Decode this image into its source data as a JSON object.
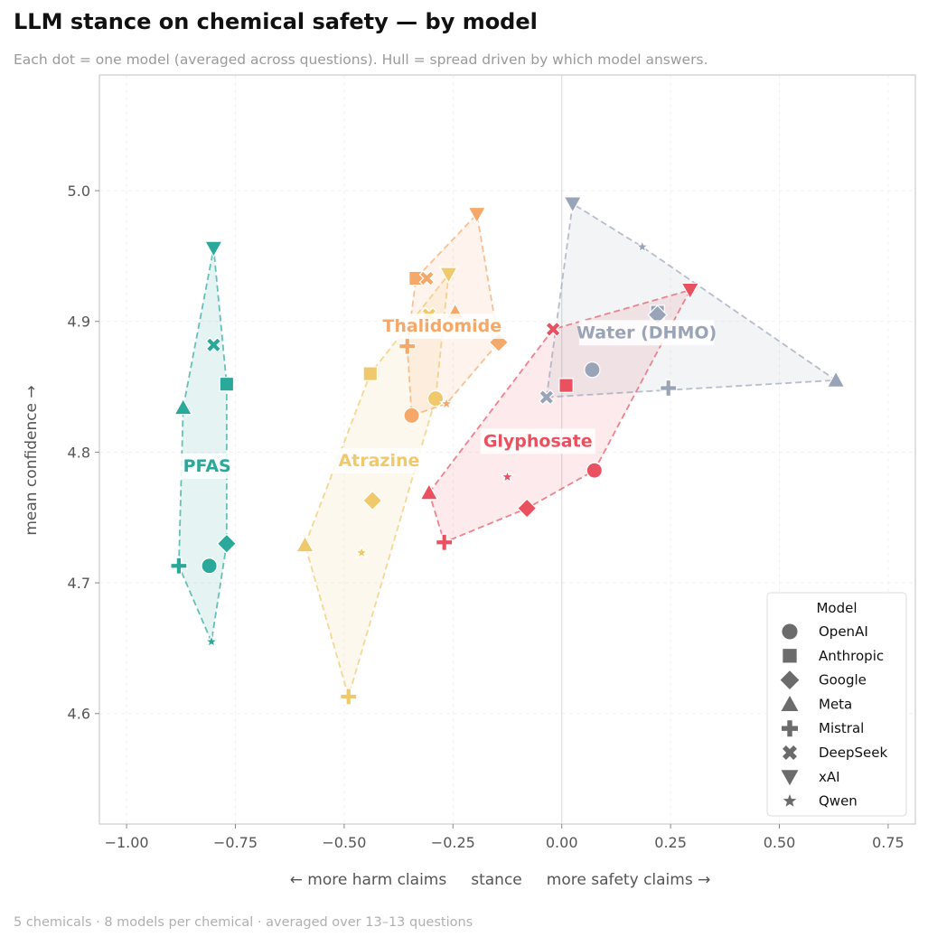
{
  "title": "LLM stance on chemical safety — by model",
  "subtitle": "Each dot = one model (averaged across questions). Hull = spread driven by which model answers.",
  "footer": "5 chemicals · 8 models per chemical · averaged over 13–13 questions",
  "chart_data": {
    "type": "scatter",
    "title": "LLM stance on chemical safety — by model",
    "xlabel": "← more harm claims     stance     more safety claims →",
    "ylabel": "mean confidence →",
    "xlim": [
      -1.0625,
      0.8125
    ],
    "ylim": [
      4.5155,
      5.0885
    ],
    "x_ticks": [
      -1.0,
      -0.75,
      -0.5,
      -0.25,
      0.0,
      0.25,
      0.5,
      0.75
    ],
    "x_tick_labels": [
      "−1.00",
      "−0.75",
      "−0.50",
      "−0.25",
      "0.00",
      "0.25",
      "0.50",
      "0.75"
    ],
    "y_ticks": [
      4.6,
      4.7,
      4.8,
      4.9,
      5.0
    ],
    "y_tick_labels": [
      "4.6",
      "4.7",
      "4.8",
      "4.9",
      "5.0"
    ],
    "grid": true,
    "reference_line_x": 0.0,
    "legend": {
      "title": "Model",
      "placement": "bottom-right",
      "entries": [
        {
          "model": "OpenAI",
          "marker": "circle"
        },
        {
          "model": "Anthropic",
          "marker": "square"
        },
        {
          "model": "Google",
          "marker": "diamond"
        },
        {
          "model": "Meta",
          "marker": "triangle-up"
        },
        {
          "model": "Mistral",
          "marker": "plus"
        },
        {
          "model": "DeepSeek",
          "marker": "x"
        },
        {
          "model": "xAI",
          "marker": "triangle-down"
        },
        {
          "model": "Qwen",
          "marker": "star"
        }
      ]
    },
    "series": [
      {
        "name": "PFAS",
        "color": "#2aa89a",
        "label_at": [
          -0.815,
          4.79
        ],
        "points": [
          {
            "model": "OpenAI",
            "x": -0.81,
            "y": 4.713
          },
          {
            "model": "Anthropic",
            "x": -0.77,
            "y": 4.852
          },
          {
            "model": "Google",
            "x": -0.77,
            "y": 4.73
          },
          {
            "model": "Meta",
            "x": -0.87,
            "y": 4.834
          },
          {
            "model": "Mistral",
            "x": -0.88,
            "y": 4.713
          },
          {
            "model": "DeepSeek",
            "x": -0.8,
            "y": 4.882
          },
          {
            "model": "xAI",
            "x": -0.8,
            "y": 4.956
          },
          {
            "model": "Qwen",
            "x": -0.805,
            "y": 4.655
          }
        ]
      },
      {
        "name": "Atrazine",
        "color": "#efc96b",
        "label_at": [
          -0.42,
          4.794
        ],
        "points": [
          {
            "model": "OpenAI",
            "x": -0.29,
            "y": 4.841
          },
          {
            "model": "Anthropic",
            "x": -0.44,
            "y": 4.86
          },
          {
            "model": "Google",
            "x": -0.435,
            "y": 4.763
          },
          {
            "model": "Meta",
            "x": -0.59,
            "y": 4.729
          },
          {
            "model": "Mistral",
            "x": -0.49,
            "y": 4.613
          },
          {
            "model": "DeepSeek",
            "x": -0.305,
            "y": 4.905
          },
          {
            "model": "xAI",
            "x": -0.26,
            "y": 4.936
          },
          {
            "model": "Qwen",
            "x": -0.46,
            "y": 4.723
          }
        ]
      },
      {
        "name": "Thalidomide",
        "color": "#f4a86a",
        "label_at": [
          -0.275,
          4.897
        ],
        "points": [
          {
            "model": "OpenAI",
            "x": -0.345,
            "y": 4.828
          },
          {
            "model": "Anthropic",
            "x": -0.335,
            "y": 4.933
          },
          {
            "model": "Google",
            "x": -0.145,
            "y": 4.884
          },
          {
            "model": "Meta",
            "x": -0.245,
            "y": 4.907
          },
          {
            "model": "Mistral",
            "x": -0.355,
            "y": 4.881
          },
          {
            "model": "DeepSeek",
            "x": -0.31,
            "y": 4.933
          },
          {
            "model": "xAI",
            "x": -0.195,
            "y": 4.982
          },
          {
            "model": "Qwen",
            "x": -0.265,
            "y": 4.837
          }
        ]
      },
      {
        "name": "Glyphosate",
        "color": "#ea5160",
        "label_at": [
          -0.055,
          4.809
        ],
        "points": [
          {
            "model": "OpenAI",
            "x": 0.075,
            "y": 4.786
          },
          {
            "model": "Anthropic",
            "x": 0.01,
            "y": 4.851
          },
          {
            "model": "Google",
            "x": -0.08,
            "y": 4.757
          },
          {
            "model": "Meta",
            "x": -0.305,
            "y": 4.769
          },
          {
            "model": "Mistral",
            "x": -0.27,
            "y": 4.731
          },
          {
            "model": "DeepSeek",
            "x": -0.02,
            "y": 4.894
          },
          {
            "model": "xAI",
            "x": 0.295,
            "y": 4.924
          },
          {
            "model": "Qwen",
            "x": -0.125,
            "y": 4.781
          }
        ]
      },
      {
        "name": "Water (DHMO)",
        "color": "#9aa4b8",
        "label_at": [
          0.195,
          4.892
        ],
        "points": [
          {
            "model": "OpenAI",
            "x": 0.07,
            "y": 4.863
          },
          {
            "model": "Anthropic",
            "x": 0.22,
            "y": 4.907
          },
          {
            "model": "Google",
            "x": 0.22,
            "y": 4.905
          },
          {
            "model": "Meta",
            "x": 0.63,
            "y": 4.855
          },
          {
            "model": "Mistral",
            "x": 0.245,
            "y": 4.849
          },
          {
            "model": "DeepSeek",
            "x": -0.035,
            "y": 4.842
          },
          {
            "model": "xAI",
            "x": 0.025,
            "y": 4.99
          },
          {
            "model": "Qwen",
            "x": 0.185,
            "y": 4.957
          }
        ]
      }
    ]
  }
}
